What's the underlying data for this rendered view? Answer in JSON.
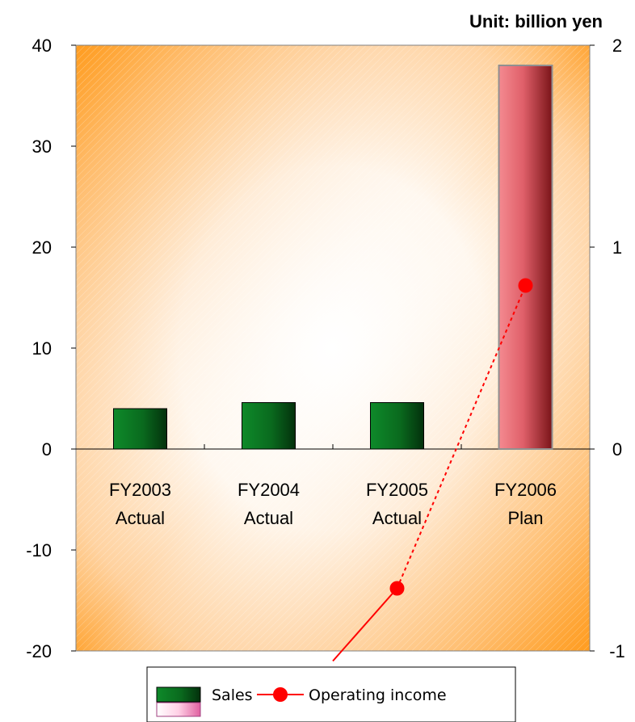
{
  "chart_data": {
    "type": "bar",
    "unit_label": "Unit: billion yen",
    "categories": [
      [
        "FY2003",
        "Actual"
      ],
      [
        "FY2004",
        "Actual"
      ],
      [
        "FY2005",
        "Actual"
      ],
      [
        "FY2006",
        "Plan"
      ]
    ],
    "series": [
      {
        "name": "Sales",
        "kind": "bar",
        "axis": "left",
        "values": [
          4.0,
          4.6,
          4.6,
          38.0
        ],
        "colors": [
          "#0a6a1e",
          "#0a6a1e",
          "#0a6a1e",
          "#e0606a"
        ]
      },
      {
        "name": "Operating income",
        "kind": "line",
        "axis": "right",
        "marker": "circle",
        "color": "#ff0000",
        "points": [
          {
            "index": 1.5,
            "value": -1.05
          },
          {
            "index": 2,
            "value": -0.69
          },
          {
            "index": 3,
            "value": 0.81
          }
        ],
        "dashed_segments": [
          1
        ]
      }
    ],
    "y_left": {
      "min": -20,
      "max": 40,
      "ticks": [
        40,
        30,
        20,
        10,
        0,
        -10,
        -20
      ]
    },
    "y_right": {
      "min": -1,
      "max": 2,
      "ticks": [
        2,
        1,
        0,
        -1
      ]
    },
    "grid": false,
    "legend_position": "bottom-center",
    "colors": {
      "plot_gradient_edge": "#ff9a1a",
      "plot_gradient_center": "#ffffff",
      "sales_bar": "#0a6a1e",
      "plan_bar": "#e0606a",
      "line": "#ff0000"
    }
  }
}
